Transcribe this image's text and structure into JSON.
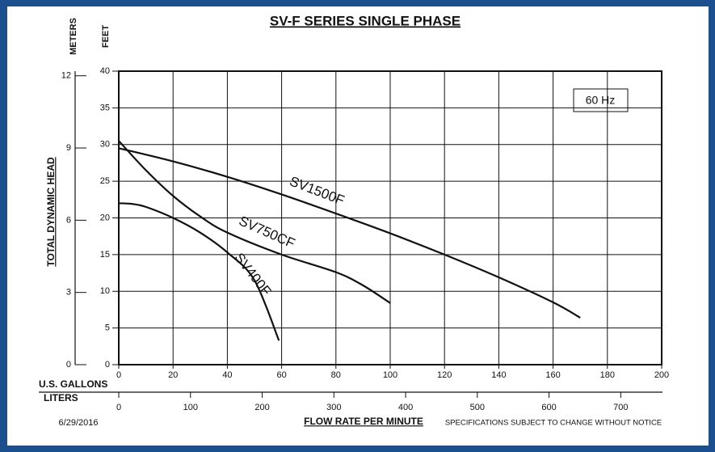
{
  "chart_data": {
    "type": "line",
    "title": "SV-F SERIES SINGLE PHASE",
    "x_label": "FLOW RATE PER MINUTE",
    "x_unit": "U.S. GALLONS",
    "x2_unit": "LITERS",
    "y_label": "TOTAL DYNAMIC HEAD",
    "y_unit": "FEET",
    "y2_unit": "METERS",
    "frequency": "60 Hz",
    "date": "6/29/2016",
    "note": "SPECIFICATIONS SUBJECT TO CHANGE WITHOUT NOTICE",
    "xlim": [
      0,
      200
    ],
    "xticks": [
      0,
      20,
      40,
      60,
      80,
      100,
      120,
      140,
      160,
      180,
      200
    ],
    "x2lim": [
      0,
      757.08
    ],
    "x2ticks": [
      0,
      100,
      200,
      300,
      400,
      500,
      600,
      700
    ],
    "ylim": [
      0,
      40
    ],
    "yticks": [
      0,
      5,
      10,
      15,
      20,
      25,
      30,
      35,
      40
    ],
    "y2lim": [
      0,
      12.192
    ],
    "y2ticks": [
      0,
      3,
      6,
      9,
      12
    ],
    "grid": true,
    "series": [
      {
        "name": "SV1500F",
        "color": "#111111",
        "x": [
          0,
          20,
          40,
          60,
          80,
          100,
          120,
          140,
          160,
          170
        ],
        "values": [
          29.5,
          27.7,
          25.6,
          23.2,
          20.6,
          17.9,
          15,
          11.9,
          8.5,
          6.4
        ]
      },
      {
        "name": "SV750CF",
        "color": "#111111",
        "x": [
          0,
          10,
          20,
          30,
          40,
          60,
          80,
          90,
          100
        ],
        "values": [
          30.5,
          26.5,
          23,
          20.2,
          18,
          15,
          12.6,
          10.8,
          8.4
        ]
      },
      {
        "name": "SV400F",
        "color": "#111111",
        "x": [
          0,
          5,
          10,
          20,
          30,
          40,
          50,
          59
        ],
        "values": [
          22,
          21.9,
          21.5,
          20,
          18,
          15.3,
          11.5,
          3.3
        ]
      }
    ]
  }
}
